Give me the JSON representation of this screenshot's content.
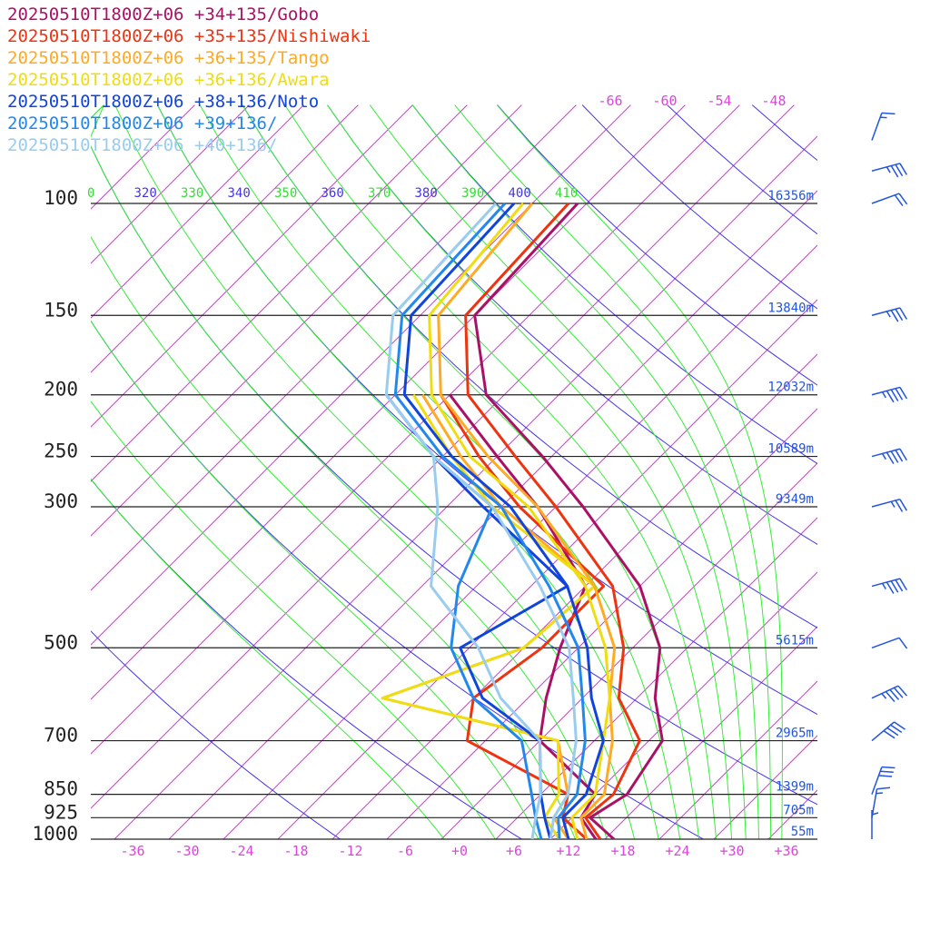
{
  "chart_data": {
    "type": "line",
    "kind": "skew-T log-P sounding",
    "legend": [
      {
        "label": "20250510T1800Z+06 +34+135/Gobo",
        "color": "#aa1166"
      },
      {
        "label": "20250510T1800Z+06 +35+135/Nishiwaki",
        "color": "#ee3311"
      },
      {
        "label": "20250510T1800Z+06 +36+135/Tango",
        "color": "#ffaa22"
      },
      {
        "label": "20250510T1800Z+06 +36+136/Awara",
        "color": "#eedd11"
      },
      {
        "label": "20250510T1800Z+06 +38+136/Noto",
        "color": "#1144dd"
      },
      {
        "label": "20250510T1800Z+06 +39+136/",
        "color": "#2288ee"
      },
      {
        "label": "20250510T1800Z+06 +40+136/",
        "color": "#99ccee"
      }
    ],
    "pressure_levels": [
      {
        "p": 100,
        "label": "100",
        "height": "16356m"
      },
      {
        "p": 150,
        "label": "150",
        "height": "13840m"
      },
      {
        "p": 200,
        "label": "200",
        "height": "12032m"
      },
      {
        "p": 250,
        "label": "250",
        "height": "10589m"
      },
      {
        "p": 300,
        "label": "300",
        "height": "9349m"
      },
      {
        "p": 500,
        "label": "500",
        "height": "5615m"
      },
      {
        "p": 700,
        "label": "700",
        "height": "2965m"
      },
      {
        "p": 850,
        "label": "850",
        "height": "1399m"
      },
      {
        "p": 925,
        "label": "925",
        "height": "705m"
      },
      {
        "p": 1000,
        "label": "1000",
        "height": "55m"
      }
    ],
    "temperature_ticks": [
      "-36",
      "-30",
      "-24",
      "-18",
      "-12",
      "-6",
      "+0",
      "+6",
      "+12",
      "+18",
      "+24",
      "+30",
      "+36"
    ],
    "upper_temperature_ticks": [
      "-66",
      "-60",
      "-54",
      "-48"
    ],
    "theta_e_labels": [
      "0",
      "320",
      "330",
      "340",
      "350",
      "360",
      "370",
      "380",
      "390",
      "400",
      "410"
    ],
    "series": [
      {
        "name": "20250510T1800Z+06 +34+135/Gobo",
        "color": "#aa1166",
        "points": [
          [
            1000,
            17
          ],
          [
            925,
            12
          ],
          [
            850,
            13.5
          ],
          [
            700,
            11.5
          ],
          [
            600,
            6
          ],
          [
            500,
            1
          ],
          [
            400,
            -8
          ],
          [
            300,
            -23
          ],
          [
            250,
            -33
          ],
          [
            200,
            -46
          ],
          [
            150,
            -56
          ],
          [
            100,
            -57
          ]
        ]
      },
      {
        "name": "20250510T1800Z+06 +35+135/Nishiwaki",
        "color": "#ee3311",
        "points": [
          [
            1000,
            15.5
          ],
          [
            925,
            11.5
          ],
          [
            850,
            12
          ],
          [
            700,
            9
          ],
          [
            600,
            2
          ],
          [
            500,
            -3
          ],
          [
            400,
            -11
          ],
          [
            300,
            -26
          ],
          [
            250,
            -36
          ],
          [
            200,
            -48
          ],
          [
            150,
            -57
          ],
          [
            100,
            -58
          ]
        ]
      },
      {
        "name": "20250510T1800Z+06 +36+135/Tango",
        "color": "#ffaa22",
        "points": [
          [
            1000,
            14
          ],
          [
            925,
            11
          ],
          [
            850,
            11
          ],
          [
            700,
            6
          ],
          [
            600,
            1
          ],
          [
            500,
            -4
          ],
          [
            400,
            -13
          ],
          [
            300,
            -28
          ],
          [
            250,
            -39
          ],
          [
            200,
            -51
          ],
          [
            150,
            -60
          ],
          [
            100,
            -62
          ]
        ]
      },
      {
        "name": "20250510T1800Z+06 +36+136/Awara",
        "color": "#eedd11",
        "points": [
          [
            1000,
            13
          ],
          [
            925,
            10
          ],
          [
            850,
            10
          ],
          [
            700,
            5
          ],
          [
            600,
            1
          ],
          [
            500,
            -5
          ],
          [
            400,
            -14
          ],
          [
            300,
            -29
          ],
          [
            250,
            -41
          ],
          [
            200,
            -52
          ],
          [
            150,
            -61
          ],
          [
            100,
            -63
          ]
        ]
      },
      {
        "name": "20250510T1800Z+06 +38+136/Noto",
        "color": "#1144dd",
        "points": [
          [
            1000,
            12
          ],
          [
            925,
            9
          ],
          [
            850,
            9
          ],
          [
            700,
            5
          ],
          [
            600,
            -1
          ],
          [
            500,
            -7
          ],
          [
            400,
            -16
          ],
          [
            300,
            -31
          ],
          [
            250,
            -43
          ],
          [
            200,
            -55
          ],
          [
            150,
            -63
          ],
          [
            100,
            -64
          ]
        ]
      },
      {
        "name": "20250510T1800Z+06 +39+136/",
        "color": "#2288ee",
        "points": [
          [
            1000,
            11
          ],
          [
            925,
            8.5
          ],
          [
            850,
            8
          ],
          [
            700,
            3
          ],
          [
            600,
            -2
          ],
          [
            500,
            -8
          ],
          [
            400,
            -18
          ],
          [
            300,
            -32
          ],
          [
            250,
            -44
          ],
          [
            200,
            -56
          ],
          [
            150,
            -64
          ],
          [
            100,
            -65
          ]
        ]
      },
      {
        "name": "20250510T1800Z+06 +40+136/",
        "color": "#99ccee",
        "points": [
          [
            1000,
            10
          ],
          [
            925,
            8
          ],
          [
            850,
            7
          ],
          [
            700,
            2
          ],
          [
            600,
            -3
          ],
          [
            500,
            -9
          ],
          [
            400,
            -19
          ],
          [
            300,
            -33
          ],
          [
            250,
            -45
          ],
          [
            200,
            -57
          ],
          [
            150,
            -65
          ],
          [
            100,
            -66
          ]
        ]
      }
    ],
    "dewpoint_series": [
      {
        "name": "20250510T1800Z+06 +34+135/Gobo",
        "color": "#aa1166",
        "points": [
          [
            1000,
            15
          ],
          [
            925,
            11
          ],
          [
            850,
            10
          ],
          [
            700,
            -2
          ],
          [
            600,
            -6
          ],
          [
            500,
            -10
          ],
          [
            400,
            -14
          ],
          [
            300,
            -28
          ],
          [
            250,
            -38
          ],
          [
            200,
            -50
          ]
        ]
      },
      {
        "name": "20250510T1800Z+06 +35+135/Nishiwaki",
        "color": "#ee3311",
        "points": [
          [
            1000,
            14
          ],
          [
            925,
            9
          ],
          [
            850,
            7
          ],
          [
            700,
            -10
          ],
          [
            600,
            -14
          ],
          [
            500,
            -12
          ],
          [
            400,
            -12
          ],
          [
            300,
            -30
          ],
          [
            250,
            -40
          ],
          [
            200,
            -51
          ]
        ]
      },
      {
        "name": "20250510T1800Z+06 +36+135/Tango",
        "color": "#ffaa22",
        "points": [
          [
            1000,
            12
          ],
          [
            925,
            8
          ],
          [
            850,
            7
          ],
          [
            700,
            0
          ],
          [
            600,
            -24
          ],
          [
            500,
            -14
          ],
          [
            400,
            -13
          ],
          [
            300,
            -32
          ],
          [
            250,
            -42
          ],
          [
            200,
            -53
          ]
        ]
      },
      {
        "name": "20250510T1800Z+06 +36+136/Awara",
        "color": "#eedd11",
        "points": [
          [
            1000,
            11
          ],
          [
            925,
            7
          ],
          [
            850,
            6
          ],
          [
            700,
            0
          ],
          [
            600,
            -24
          ],
          [
            500,
            -14
          ],
          [
            400,
            -13
          ],
          [
            300,
            -33
          ],
          [
            250,
            -43
          ],
          [
            200,
            -54
          ]
        ]
      },
      {
        "name": "20250510T1800Z+06 +38+136/Noto",
        "color": "#1144dd",
        "points": [
          [
            1000,
            10
          ],
          [
            925,
            7
          ],
          [
            850,
            4
          ],
          [
            700,
            -2
          ],
          [
            600,
            -13
          ],
          [
            500,
            -21
          ],
          [
            400,
            -16
          ],
          [
            300,
            -34
          ],
          [
            250,
            -45
          ],
          [
            200,
            -57
          ]
        ]
      },
      {
        "name": "20250510T1800Z+06 +39+136/",
        "color": "#2288ee",
        "points": [
          [
            1000,
            9
          ],
          [
            925,
            6
          ],
          [
            850,
            3
          ],
          [
            700,
            -4
          ],
          [
            600,
            -14
          ],
          [
            500,
            -22
          ],
          [
            400,
            -28
          ],
          [
            300,
            -33
          ],
          [
            250,
            -45
          ],
          [
            200,
            -57
          ]
        ]
      },
      {
        "name": "20250510T1800Z+06 +40+136/",
        "color": "#99ccee",
        "points": [
          [
            1000,
            8
          ],
          [
            925,
            6
          ],
          [
            850,
            4
          ],
          [
            700,
            -2
          ],
          [
            600,
            -11
          ],
          [
            500,
            -19
          ],
          [
            400,
            -31
          ],
          [
            300,
            -39
          ],
          [
            250,
            -45
          ],
          [
            200,
            -57
          ]
        ]
      }
    ],
    "wind_barbs": [
      {
        "p": 1000,
        "speed_kt": 5,
        "dir_deg": 180
      },
      {
        "p": 925,
        "speed_kt": 15,
        "dir_deg": 190
      },
      {
        "p": 850,
        "speed_kt": 30,
        "dir_deg": 200
      },
      {
        "p": 700,
        "speed_kt": 40,
        "dir_deg": 230
      },
      {
        "p": 600,
        "speed_kt": 45,
        "dir_deg": 245
      },
      {
        "p": 500,
        "speed_kt": 10,
        "dir_deg": 250
      },
      {
        "p": 400,
        "speed_kt": 45,
        "dir_deg": 255
      },
      {
        "p": 300,
        "speed_kt": 25,
        "dir_deg": 255
      },
      {
        "p": 250,
        "speed_kt": 45,
        "dir_deg": 255
      },
      {
        "p": 200,
        "speed_kt": 45,
        "dir_deg": 255
      },
      {
        "p": 150,
        "speed_kt": 35,
        "dir_deg": 255
      },
      {
        "p": 100,
        "speed_kt": 20,
        "dir_deg": 250
      },
      {
        "p": 70,
        "speed_kt": 35,
        "dir_deg": 255
      },
      {
        "p": 50,
        "speed_kt": 15,
        "dir_deg": 200
      }
    ],
    "xlim": [
      -40,
      40
    ],
    "ylim": [
      1000,
      100
    ],
    "yscale": "log",
    "grid": true,
    "legend_position": "top-left"
  }
}
